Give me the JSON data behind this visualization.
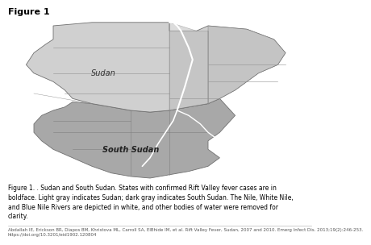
{
  "title": "Figure 1",
  "title_fontsize": 8,
  "title_fontweight": "bold",
  "caption_text": "Figure 1. . Sudan and South Sudan. States with confirmed Rift Valley fever cases are in\nboldface. Light gray indicates Sudan; dark gray indicates South Sudan. The Nile, White Nile,\nand Blue Nile Rivers are depicted in white, and other bodies of water were removed for\nclarity.",
  "citation_text": "Abdallah IE, Erickson BR, Diapos BM, Khristova ML, Carroll SA, ElBhide IM, et al. Rift Valley Fever, Sudan, 2007 and 2010. Emerg Infect Dis. 2013;19(2):246-253.\nhttps://doi.org/10.3201/eid1902.120804",
  "caption_fontsize": 5.5,
  "citation_fontsize": 4.0,
  "sudan_color": "#d0d0d0",
  "south_sudan_color": "#a8a8a8",
  "border_color": "#707070",
  "state_border_color": "#909090",
  "white_color": "#ffffff",
  "background_color": "#ffffff",
  "sudan_label": "Sudan",
  "south_sudan_label": "South Sudan",
  "sudan_label_fontsize": 7,
  "ss_label_fontsize": 7
}
